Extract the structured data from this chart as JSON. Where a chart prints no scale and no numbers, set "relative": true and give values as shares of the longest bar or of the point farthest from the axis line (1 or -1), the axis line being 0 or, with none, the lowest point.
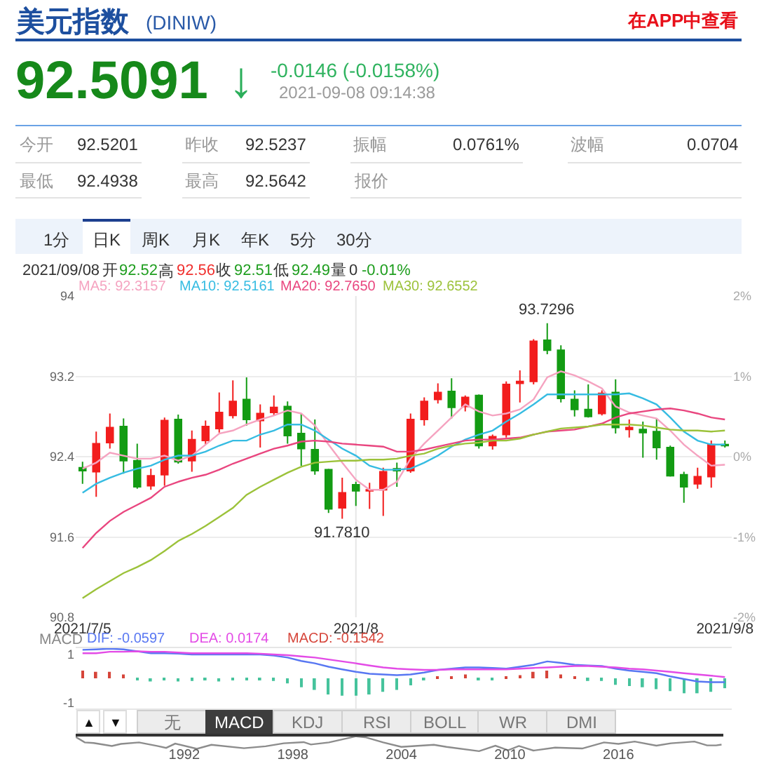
{
  "chart_data": [
    {
      "type": "candlestick",
      "title": "美元指数",
      "subtitle": "(DINIW)",
      "annotations": [
        "在APP中查看",
        "92.5091",
        "↓",
        "-0.0146 (-0.0158%)",
        "2021-09-08 09:14:38",
        "今开",
        "92.5201",
        "昨收",
        "92.5237",
        "振幅",
        "0.0761%",
        "波幅",
        "0.0704",
        "最低",
        "92.4938",
        "最高",
        "92.5642",
        "报价",
        "1分",
        "日K",
        "周K",
        "月K",
        "年K",
        "5分",
        "30分",
        "2021/09/08",
        "开",
        "92.52",
        "高",
        "92.56",
        "收",
        "92.51",
        "低",
        "92.49",
        "量",
        "0",
        "-0.01%",
        {
          "text": "93.7296",
          "y": 93.7296
        },
        {
          "text": "91.7810",
          "y": 91.781
        }
      ],
      "categories": [
        "2021/7/5",
        null,
        null,
        null,
        null,
        null,
        null,
        null,
        null,
        null,
        null,
        null,
        null,
        null,
        null,
        null,
        null,
        null,
        null,
        null,
        "2021/8",
        null,
        null,
        null,
        null,
        null,
        null,
        null,
        null,
        null,
        null,
        null,
        null,
        null,
        null,
        null,
        null,
        null,
        null,
        null,
        null,
        null,
        null,
        null,
        null,
        null,
        null,
        "2021/9/8"
      ],
      "ohlc": [
        [
          92.29,
          92.35,
          92.13,
          92.26
        ],
        [
          92.25,
          92.65,
          92.0,
          92.53
        ],
        [
          92.54,
          92.83,
          92.48,
          92.69
        ],
        [
          92.7,
          92.78,
          92.23,
          92.36
        ],
        [
          92.36,
          92.53,
          92.08,
          92.1
        ],
        [
          92.11,
          92.28,
          92.07,
          92.21
        ],
        [
          92.22,
          92.79,
          92.11,
          92.76
        ],
        [
          92.77,
          92.82,
          92.33,
          92.35
        ],
        [
          92.36,
          92.66,
          92.25,
          92.57
        ],
        [
          92.56,
          92.76,
          92.52,
          92.7
        ],
        [
          92.68,
          93.04,
          92.64,
          92.84
        ],
        [
          92.81,
          93.16,
          92.78,
          92.95
        ],
        [
          92.97,
          93.19,
          92.71,
          92.77
        ],
        [
          92.76,
          92.92,
          92.49,
          92.83
        ],
        [
          92.84,
          93.01,
          92.81,
          92.89
        ],
        [
          92.9,
          92.95,
          92.53,
          92.61
        ],
        [
          92.63,
          92.83,
          92.31,
          92.48
        ],
        [
          92.47,
          92.77,
          92.22,
          92.26
        ],
        [
          92.27,
          92.28,
          91.84,
          91.88
        ],
        [
          91.89,
          92.19,
          91.781,
          92.04
        ],
        [
          92.12,
          92.15,
          91.91,
          92.06
        ],
        [
          92.06,
          92.14,
          91.88,
          92.07
        ],
        [
          92.07,
          92.29,
          91.81,
          92.25
        ],
        [
          92.28,
          92.34,
          92.1,
          92.26
        ],
        [
          92.26,
          92.83,
          92.24,
          92.77
        ],
        [
          92.77,
          92.99,
          92.71,
          92.95
        ],
        [
          92.97,
          93.13,
          92.93,
          93.04
        ],
        [
          93.05,
          93.18,
          92.78,
          92.89
        ],
        [
          92.9,
          93.01,
          92.85,
          92.99
        ],
        [
          93.01,
          93.02,
          92.48,
          92.51
        ],
        [
          92.51,
          92.62,
          92.47,
          92.6
        ],
        [
          92.62,
          93.15,
          92.59,
          93.12
        ],
        [
          93.13,
          93.26,
          92.94,
          93.15
        ],
        [
          93.15,
          93.57,
          93.12,
          93.55
        ],
        [
          93.56,
          93.7296,
          93.42,
          93.46
        ],
        [
          93.46,
          93.51,
          92.94,
          92.98
        ],
        [
          92.97,
          93.06,
          92.8,
          92.87
        ],
        [
          92.87,
          93.12,
          92.79,
          92.8
        ],
        [
          92.83,
          93.06,
          92.81,
          93.03
        ],
        [
          93.04,
          93.17,
          92.63,
          92.69
        ],
        [
          92.67,
          92.77,
          92.59,
          92.69
        ],
        [
          92.67,
          92.75,
          92.39,
          92.64
        ],
        [
          92.65,
          92.78,
          92.37,
          92.49
        ],
        [
          92.49,
          92.51,
          92.2,
          92.21
        ],
        [
          92.22,
          92.25,
          91.94,
          92.1
        ],
        [
          92.13,
          92.29,
          92.08,
          92.2
        ],
        [
          92.2,
          92.56,
          92.09,
          92.52
        ],
        [
          92.52,
          92.56,
          92.49,
          92.51
        ]
      ],
      "colors": [
        "#139b13",
        "#f21d1d",
        "#f21d1d",
        "#139b13",
        "#139b13",
        "#f21d1d",
        "#f21d1d",
        "#139b13",
        "#f21d1d",
        "#f21d1d",
        "#f21d1d",
        "#f21d1d",
        "#139b13",
        "#f21d1d",
        "#f21d1d",
        "#139b13",
        "#139b13",
        "#139b13",
        "#139b13",
        "#f21d1d",
        "#139b13",
        "#f21d1d",
        "#f21d1d",
        "#139b13",
        "#f21d1d",
        "#f21d1d",
        "#f21d1d",
        "#139b13",
        "#f21d1d",
        "#139b13",
        "#f21d1d",
        "#f21d1d",
        "#f21d1d",
        "#f21d1d",
        "#139b13",
        "#139b13",
        "#139b13",
        "#139b13",
        "#f21d1d",
        "#139b13",
        "#f21d1d",
        "#139b13",
        "#139b13",
        "#139b13",
        "#139b13",
        "#f21d1d",
        "#f21d1d",
        "#139b13"
      ],
      "series": [
        {
          "name": "MA5: 92.3157",
          "type": "line",
          "color": "#f5a3c0",
          "values": [
            92.28,
            92.34,
            92.44,
            92.41,
            92.38,
            92.38,
            92.41,
            92.36,
            92.41,
            92.52,
            92.63,
            92.66,
            92.72,
            92.77,
            92.81,
            92.86,
            92.83,
            92.71,
            92.52,
            92.34,
            92.17,
            92.07,
            92.07,
            92.15,
            92.38,
            92.53,
            92.66,
            92.79,
            92.92,
            92.85,
            92.81,
            92.83,
            92.87,
            92.97,
            93.19,
            93.25,
            93.21,
            93.15,
            93.08,
            92.9,
            92.84,
            92.81,
            92.78,
            92.66,
            92.52,
            92.41,
            92.31,
            92.32
          ]
        },
        {
          "name": "MA10: 92.5161",
          "type": "line",
          "color": "#36bce2",
          "values": [
            92.04,
            92.13,
            92.19,
            92.24,
            92.28,
            92.31,
            92.37,
            92.41,
            92.41,
            92.45,
            92.51,
            92.56,
            92.56,
            92.62,
            92.66,
            92.72,
            92.72,
            92.66,
            92.57,
            92.48,
            92.41,
            92.31,
            92.27,
            92.27,
            92.28,
            92.34,
            92.41,
            92.5,
            92.57,
            92.62,
            92.66,
            92.75,
            92.83,
            92.92,
            93.02,
            93.02,
            93.02,
            93.02,
            93.02,
            93.02,
            93.03,
            92.98,
            92.92,
            92.79,
            92.65,
            92.56,
            92.52,
            92.52
          ]
        },
        {
          "name": "MA20: 92.7650",
          "type": "line",
          "color": "#e9467f",
          "values": [
            91.49,
            91.64,
            91.76,
            91.85,
            91.92,
            91.99,
            92.1,
            92.15,
            92.19,
            92.22,
            92.27,
            92.33,
            92.38,
            92.43,
            92.48,
            92.51,
            92.55,
            92.56,
            92.55,
            92.53,
            92.52,
            92.51,
            92.5,
            92.45,
            92.45,
            92.47,
            92.5,
            92.53,
            92.56,
            92.57,
            92.57,
            92.58,
            92.59,
            92.62,
            92.65,
            92.66,
            92.67,
            92.7,
            92.73,
            92.79,
            92.83,
            92.85,
            92.87,
            92.88,
            92.86,
            92.83,
            92.79,
            92.77
          ]
        },
        {
          "name": "MA30: 92.6552",
          "type": "line",
          "color": "#9cc23a",
          "values": [
            90.99,
            91.08,
            91.16,
            91.24,
            91.3,
            91.37,
            91.46,
            91.56,
            91.63,
            91.71,
            91.8,
            91.89,
            92.02,
            92.1,
            92.17,
            92.24,
            92.3,
            92.34,
            92.35,
            92.36,
            92.36,
            92.37,
            92.37,
            92.38,
            92.41,
            92.43,
            92.48,
            92.51,
            92.53,
            92.54,
            92.56,
            92.56,
            92.58,
            92.62,
            92.65,
            92.68,
            92.69,
            92.7,
            92.72,
            92.72,
            92.72,
            92.71,
            92.69,
            92.67,
            92.66,
            92.66,
            92.65,
            92.66
          ]
        }
      ],
      "ylim": [
        90.8,
        94
      ],
      "yticks": [
        94,
        93.2,
        92.4,
        91.6,
        90.8
      ],
      "y2lim": [
        -2,
        2
      ],
      "y2ticks": [
        {
          "value": 2,
          "label": "2%"
        },
        {
          "value": 1,
          "label": "1%"
        },
        {
          "value": 0,
          "label": "0%"
        },
        {
          "value": -1,
          "label": "-1%"
        },
        {
          "value": -2,
          "label": "-2%"
        }
      ],
      "grid": true
    },
    {
      "type": "bar",
      "title": "MACD",
      "annotations": [
        "▲",
        "▼",
        "无",
        "MACD",
        "KDJ",
        "RSI",
        "BOLL",
        "WR",
        "DMI"
      ],
      "categories": [
        "2021/7/5",
        null,
        null,
        null,
        null,
        null,
        null,
        null,
        null,
        null,
        null,
        null,
        null,
        null,
        null,
        null,
        null,
        null,
        null,
        null,
        "2021/8",
        null,
        null,
        null,
        null,
        null,
        null,
        null,
        null,
        null,
        null,
        null,
        null,
        null,
        null,
        null,
        null,
        null,
        null,
        null,
        null,
        null,
        null,
        null,
        null,
        null,
        null,
        "2021/9/8"
      ],
      "series": [
        {
          "name": "DIF: -0.0597",
          "type": "line",
          "color": "#5877f2",
          "values": [
            1.18,
            1.2,
            1.23,
            1.2,
            1.12,
            1.04,
            1.04,
            1.02,
            0.99,
            0.99,
            0.99,
            0.99,
            0.99,
            0.99,
            0.94,
            0.86,
            0.72,
            0.62,
            0.48,
            0.37,
            0.27,
            0.19,
            0.16,
            0.13,
            0.16,
            0.24,
            0.35,
            0.4,
            0.45,
            0.45,
            0.43,
            0.4,
            0.48,
            0.56,
            0.7,
            0.64,
            0.56,
            0.53,
            0.51,
            0.4,
            0.32,
            0.27,
            0.21,
            0.08,
            -0.03,
            -0.13,
            -0.16,
            -0.16
          ]
        },
        {
          "name": "DEA: 0.0174",
          "type": "line",
          "color": "#e34be6",
          "values": [
            1.04,
            1.04,
            1.1,
            1.1,
            1.12,
            1.1,
            1.1,
            1.07,
            1.04,
            1.04,
            1.04,
            1.04,
            1.04,
            1.02,
            0.99,
            0.96,
            0.91,
            0.86,
            0.78,
            0.7,
            0.62,
            0.53,
            0.45,
            0.4,
            0.37,
            0.35,
            0.35,
            0.37,
            0.37,
            0.37,
            0.37,
            0.37,
            0.4,
            0.43,
            0.45,
            0.48,
            0.51,
            0.51,
            0.48,
            0.45,
            0.4,
            0.37,
            0.32,
            0.27,
            0.21,
            0.16,
            0.11,
            0.05
          ]
        },
        {
          "name": "MACD: -0.1542",
          "colors": [
            "#d6453a",
            "#d6453a",
            "#d6453a",
            "#d6453a",
            "#46c39c",
            "#46c39c",
            "#46c39c",
            "#46c39c",
            "#46c39c",
            "#46c39c",
            "#46c39c",
            "#46c39c",
            "#46c39c",
            "#46c39c",
            "#46c39c",
            "#46c39c",
            "#46c39c",
            "#46c39c",
            "#46c39c",
            "#46c39c",
            "#46c39c",
            "#46c39c",
            "#46c39c",
            "#46c39c",
            "#46c39c",
            "#46c39c",
            "#d6453a",
            "#d6453a",
            "#d6453a",
            "#46c39c",
            "#46c39c",
            "#d6453a",
            "#d6453a",
            "#d6453a",
            "#d6453a",
            "#d6453a",
            "#d6453a",
            "#46c39c",
            "#46c39c",
            "#46c39c",
            "#46c39c",
            "#46c39c",
            "#46c39c",
            "#46c39c",
            "#46c39c",
            "#46c39c",
            "#46c39c",
            "#46c39c"
          ],
          "values": [
            0.32,
            0.27,
            0.27,
            0.16,
            -0.03,
            -0.13,
            -0.05,
            -0.13,
            -0.11,
            -0.08,
            -0.13,
            -0.05,
            -0.05,
            -0.08,
            -0.11,
            -0.21,
            -0.37,
            -0.48,
            -0.67,
            -0.72,
            -0.72,
            -0.67,
            -0.56,
            -0.48,
            -0.29,
            -0.08,
            0.05,
            0.08,
            0.16,
            -0.03,
            -0.05,
            0.08,
            0.13,
            0.27,
            0.32,
            0.16,
            0.03,
            -0.11,
            -0.11,
            -0.27,
            -0.32,
            -0.37,
            -0.45,
            -0.53,
            -0.62,
            -0.62,
            -0.56,
            -0.41
          ]
        }
      ],
      "ylim": [
        -1.25,
        1.25
      ],
      "yticks": [
        1,
        -1
      ],
      "grid": "x",
      "tick_labels": "y"
    },
    {
      "type": "line",
      "relative": true,
      "color": "#8c8c8c",
      "x": [
        1986.0,
        1986.5,
        1987.0,
        1988.0,
        1988.5,
        1989.5,
        1990.5,
        1991.0,
        1991.5,
        1992.7,
        1993.5,
        1995.3,
        1996.5,
        1997.5,
        1998.6,
        1999.0,
        2000.0,
        2001.5,
        2002.0,
        2003.0,
        2004.0,
        2005.8,
        2006.5,
        2008.3,
        2009.2,
        2009.9,
        2010.5,
        2011.3,
        2012.5,
        2014.0,
        2015.2,
        2016.0,
        2016.9,
        2018.1,
        2018.9,
        2020.2,
        2020.9,
        2021.4,
        2021.7
      ],
      "values": [
        0.96,
        0.59,
        0.55,
        0.35,
        0.49,
        0.59,
        0.35,
        0.22,
        0.51,
        0.16,
        0.43,
        0.2,
        0.33,
        0.53,
        0.61,
        0.45,
        0.59,
        1,
        0.94,
        0.59,
        0.29,
        0.43,
        0.29,
        0,
        0.37,
        0.06,
        0.35,
        0.04,
        0.24,
        0.18,
        0.59,
        0.49,
        0.65,
        0.37,
        0.53,
        0.65,
        0.39,
        0.39,
        0.44
      ],
      "xlim": [
        1986,
        2021.8
      ],
      "xticks": [
        1992,
        1998,
        2004,
        2010,
        2016
      ]
    }
  ]
}
